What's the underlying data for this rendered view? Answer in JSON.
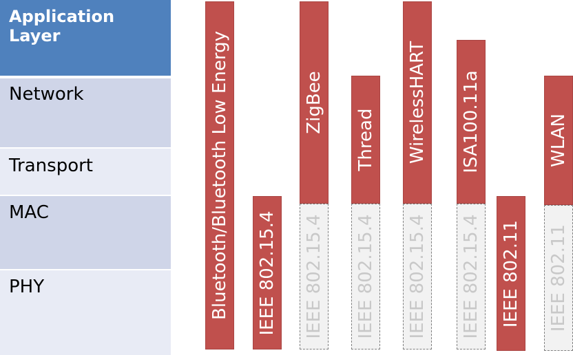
{
  "layers": {
    "application": "Application Layer",
    "network": "Network",
    "transport": "Transport",
    "mac": "MAC",
    "phy": "PHY"
  },
  "protocols": {
    "bluetooth": "Bluetooth/Bluetooth Low Energy",
    "ieee802154_a": "IEEE 802.15.4",
    "zigbee": "ZigBee",
    "zigbee_base": "IEEE 802.15.4",
    "thread": "Thread",
    "thread_base": "IEEE 802.15.4",
    "wirelesshart": "WirelessHART",
    "wirelesshart_base": "IEEE 802.15.4",
    "isa100": "ISA100.11a",
    "isa100_base": "IEEE 802.15.4",
    "ieee80211_a": "IEEE 802.11",
    "wlan": "WLAN",
    "wlan_base": "IEEE 802.11"
  },
  "colors": {
    "application_layer": "#4f81bd",
    "layer_dark": "#cfd5e8",
    "layer_light": "#e8ebf5",
    "protocol_bar": "#c0504d",
    "base_bar": "#f2f2f2"
  }
}
